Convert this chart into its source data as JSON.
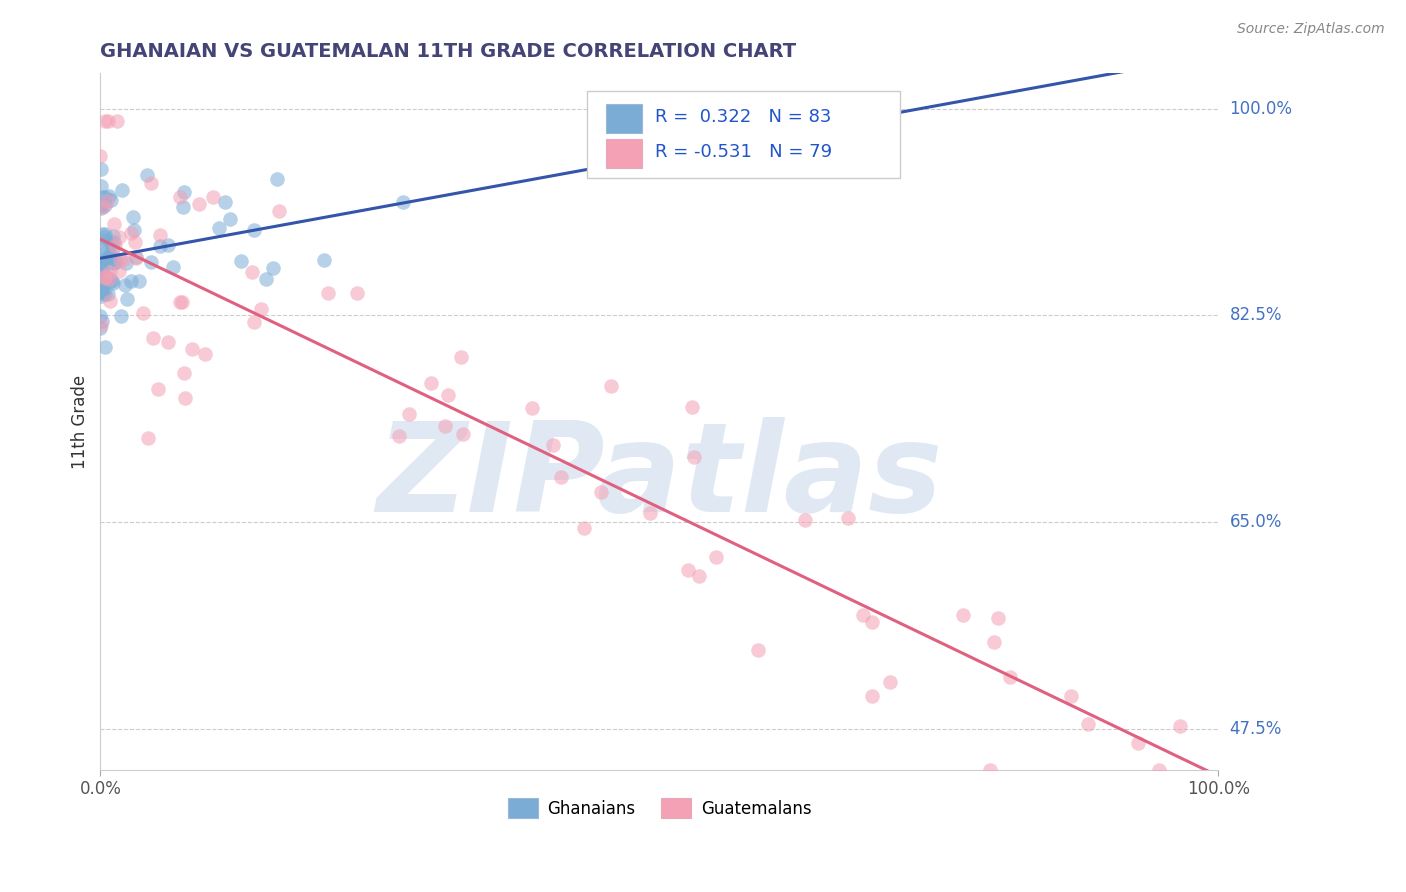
{
  "title": "GHANAIAN VS GUATEMALAN 11TH GRADE CORRELATION CHART",
  "source_text": "Source: ZipAtlas.com",
  "ylabel": "11th Grade",
  "xlim": [
    0.0,
    1.0
  ],
  "ylim": [
    0.44,
    1.03
  ],
  "ytick_positions": [
    0.475,
    0.65,
    0.825,
    1.0
  ],
  "ytick_labels": [
    "47.5%",
    "65.0%",
    "82.5%",
    "100.0%"
  ],
  "ghanaian_color": "#7aacd6",
  "guatemalan_color": "#f4a0b5",
  "ghanaian_R": 0.322,
  "ghanaian_N": 83,
  "guatemalan_R": -0.531,
  "guatemalan_N": 79,
  "trend_blue": "#3355aa",
  "trend_pink": "#e06080",
  "watermark": "ZIPatlas",
  "watermark_color": "#c8d8ea",
  "legend_R_color": "#2255cc",
  "background_color": "#ffffff",
  "grid_color": "#cccccc",
  "scatter_alpha": 0.55,
  "scatter_size": 110,
  "ghanaian_seed": 77,
  "guatemalan_seed": 55
}
